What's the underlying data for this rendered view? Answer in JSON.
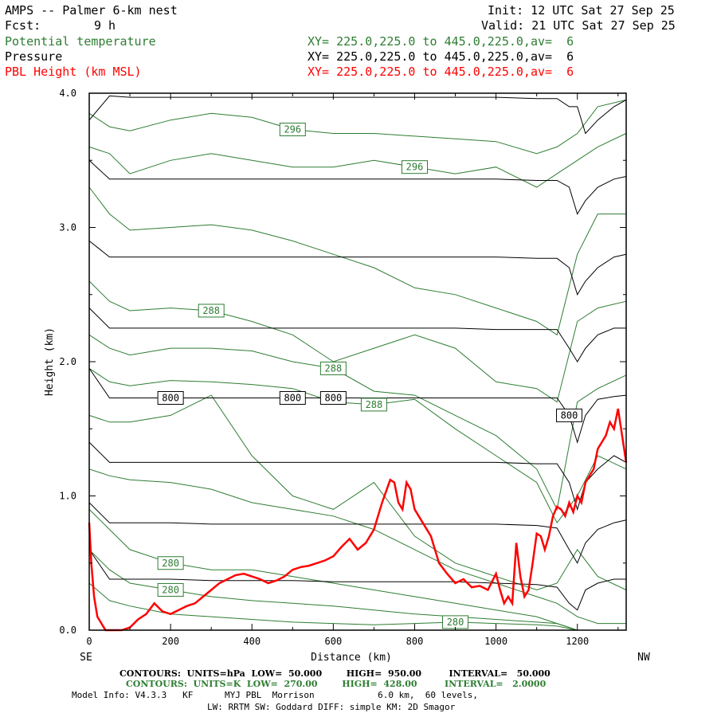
{
  "header": {
    "title": "AMPS -- Palmer 6-km nest",
    "fcst_label": "Fcst:",
    "fcst_value": "9 h",
    "init": "Init: 12 UTC Sat 27 Sep 25",
    "valid": "Valid: 21 UTC Sat 27 Sep 25"
  },
  "legend": [
    {
      "name": "Potential temperature",
      "xy": "XY= 225.0,225.0 to 445.0,225.0,av=  6",
      "color": "#2e7d32"
    },
    {
      "name": "Pressure",
      "xy": "XY= 225.0,225.0 to 445.0,225.0,av=  6",
      "color": "#000000"
    },
    {
      "name": "PBL Height (km MSL)",
      "xy": "XY= 225.0,225.0 to 445.0,225.0,av=  6",
      "color": "#ff0000"
    }
  ],
  "axes": {
    "ylabel": "Height (km)",
    "xlabel": "Distance (km)",
    "left_end": "SE",
    "right_end": "NW",
    "xlim": [
      0,
      1320
    ],
    "ylim": [
      0,
      4.0
    ],
    "xticks": [
      "0",
      "200",
      "400",
      "600",
      "800",
      "1000",
      "1200"
    ],
    "yticks": [
      "0.0",
      "1.0",
      "2.0",
      "3.0",
      "4.0"
    ]
  },
  "footer": {
    "contours_black": "CONTOURS:  UNITS=hPa  LOW=  50.000        HIGH=  950.00         INTERVAL=   50.000",
    "contours_green": "CONTOURS:  UNITS=K  LOW=  270.00        HIGH=  428.00         INTERVAL=   2.0000",
    "model_info": "Model Info: V4.3.3   KF      MYJ PBL  Morrison            6.0 km,  60 levels,",
    "physics": "LW: RRTM SW: Goddard DIFF: simple KM: 2D Smagor"
  },
  "chart_data": {
    "type": "line",
    "title": "AMPS -- Palmer 6-km nest",
    "xlabel": "Distance (km)",
    "ylabel": "Height (km)",
    "xlim": [
      0,
      1320
    ],
    "ylim": [
      0,
      4.0
    ],
    "series": [
      {
        "name": "PBL Height (km MSL)",
        "color": "#ff0000",
        "x": [
          0,
          5,
          12,
          20,
          40,
          60,
          80,
          100,
          120,
          140,
          160,
          180,
          200,
          220,
          240,
          260,
          280,
          300,
          320,
          340,
          360,
          380,
          400,
          420,
          440,
          460,
          480,
          500,
          520,
          540,
          560,
          580,
          600,
          620,
          640,
          660,
          680,
          700,
          720,
          740,
          750,
          760,
          770,
          780,
          790,
          800,
          820,
          840,
          860,
          880,
          900,
          920,
          940,
          960,
          980,
          1000,
          1010,
          1020,
          1030,
          1040,
          1050,
          1060,
          1070,
          1080,
          1090,
          1100,
          1110,
          1120,
          1130,
          1140,
          1150,
          1160,
          1170,
          1180,
          1190,
          1200,
          1210,
          1220,
          1230,
          1240,
          1250,
          1260,
          1270,
          1280,
          1290,
          1300,
          1310,
          1320
        ],
        "y": [
          0.8,
          0.5,
          0.25,
          0.1,
          0.0,
          0.0,
          0.0,
          0.02,
          0.08,
          0.12,
          0.2,
          0.14,
          0.12,
          0.15,
          0.18,
          0.2,
          0.25,
          0.3,
          0.35,
          0.38,
          0.41,
          0.42,
          0.4,
          0.38,
          0.35,
          0.37,
          0.4,
          0.45,
          0.47,
          0.48,
          0.5,
          0.52,
          0.55,
          0.62,
          0.68,
          0.6,
          0.65,
          0.75,
          0.95,
          1.12,
          1.1,
          0.95,
          0.9,
          1.1,
          1.05,
          0.9,
          0.8,
          0.7,
          0.5,
          0.42,
          0.35,
          0.38,
          0.32,
          0.33,
          0.3,
          0.42,
          0.3,
          0.2,
          0.25,
          0.2,
          0.65,
          0.4,
          0.25,
          0.3,
          0.5,
          0.72,
          0.7,
          0.6,
          0.7,
          0.85,
          0.92,
          0.9,
          0.85,
          0.95,
          0.88,
          1.0,
          0.95,
          1.1,
          1.15,
          1.2,
          1.35,
          1.4,
          1.45,
          1.55,
          1.5,
          1.65,
          1.45,
          1.25
        ]
      },
      {
        "name": "Pressure",
        "color": "#000000",
        "x": [
          0,
          50,
          100,
          200,
          300,
          400,
          500,
          600,
          700,
          800,
          900,
          1000,
          1100,
          1150,
          1180,
          1200,
          1220,
          1250,
          1290,
          1320
        ],
        "levels": [
          {
            "label": "",
            "y": [
              3.8,
              3.98,
              3.97,
              3.97,
              3.97,
              3.97,
              3.97,
              3.97,
              3.97,
              3.97,
              3.97,
              3.97,
              3.96,
              3.96,
              3.9,
              3.9,
              3.7,
              3.8,
              3.9,
              3.95
            ]
          },
          {
            "label": "",
            "y": [
              3.5,
              3.36,
              3.36,
              3.36,
              3.36,
              3.36,
              3.36,
              3.36,
              3.36,
              3.36,
              3.36,
              3.36,
              3.35,
              3.35,
              3.3,
              3.1,
              3.2,
              3.3,
              3.36,
              3.38
            ]
          },
          {
            "label": "",
            "y": [
              2.9,
              2.78,
              2.78,
              2.78,
              2.78,
              2.78,
              2.78,
              2.78,
              2.78,
              2.78,
              2.78,
              2.78,
              2.77,
              2.77,
              2.7,
              2.5,
              2.6,
              2.7,
              2.78,
              2.8
            ]
          },
          {
            "label": "",
            "y": [
              2.4,
              2.25,
              2.25,
              2.25,
              2.25,
              2.25,
              2.25,
              2.25,
              2.25,
              2.25,
              2.25,
              2.24,
              2.24,
              2.24,
              2.1,
              2.0,
              2.1,
              2.2,
              2.25,
              2.25
            ]
          },
          {
            "label": "800",
            "y": [
              1.95,
              1.73,
              1.73,
              1.73,
              1.73,
              1.73,
              1.73,
              1.73,
              1.73,
              1.73,
              1.73,
              1.73,
              1.73,
              1.73,
              1.6,
              1.4,
              1.6,
              1.72,
              1.74,
              1.75
            ]
          },
          {
            "label": "",
            "y": [
              1.4,
              1.25,
              1.25,
              1.25,
              1.25,
              1.25,
              1.25,
              1.25,
              1.25,
              1.25,
              1.25,
              1.25,
              1.24,
              1.24,
              1.1,
              0.9,
              1.1,
              1.2,
              1.3,
              1.25
            ]
          },
          {
            "label": "",
            "y": [
              0.95,
              0.8,
              0.8,
              0.8,
              0.79,
              0.79,
              0.79,
              0.79,
              0.79,
              0.79,
              0.79,
              0.79,
              0.78,
              0.76,
              0.6,
              0.5,
              0.65,
              0.75,
              0.8,
              0.82
            ]
          },
          {
            "label": "",
            "y": [
              0.6,
              0.38,
              0.38,
              0.38,
              0.37,
              0.37,
              0.37,
              0.36,
              0.36,
              0.36,
              0.36,
              0.35,
              0.34,
              0.32,
              0.2,
              0.15,
              0.3,
              0.35,
              0.38,
              0.38
            ]
          }
        ]
      },
      {
        "name": "Potential temperature",
        "color": "#2e7d32",
        "x": [
          0,
          50,
          100,
          200,
          300,
          400,
          500,
          600,
          700,
          800,
          900,
          1000,
          1100,
          1150,
          1200,
          1250,
          1320
        ],
        "levels": [
          {
            "label": "296",
            "y": [
              3.85,
              3.75,
              3.72,
              3.8,
              3.85,
              3.82,
              3.73,
              3.7,
              3.7,
              3.68,
              3.66,
              3.64,
              3.55,
              3.6,
              3.7,
              3.9,
              3.95
            ]
          },
          {
            "label": "296",
            "y": [
              3.6,
              3.55,
              3.4,
              3.5,
              3.55,
              3.5,
              3.45,
              3.45,
              3.5,
              3.45,
              3.4,
              3.45,
              3.3,
              3.4,
              3.5,
              3.6,
              3.7
            ]
          },
          {
            "label": "",
            "y": [
              3.3,
              3.1,
              2.98,
              3.0,
              3.02,
              2.98,
              2.9,
              2.8,
              2.7,
              2.55,
              2.5,
              2.4,
              2.3,
              2.2,
              2.8,
              3.1,
              3.1
            ]
          },
          {
            "label": "288",
            "y": [
              2.6,
              2.45,
              2.38,
              2.4,
              2.38,
              2.3,
              2.2,
              2.0,
              2.1,
              2.2,
              2.1,
              1.85,
              1.8,
              1.7,
              2.3,
              2.4,
              2.45
            ]
          },
          {
            "label": "288",
            "y": [
              2.2,
              2.1,
              2.05,
              2.1,
              2.1,
              2.08,
              2.0,
              1.95,
              1.78,
              1.75,
              1.6,
              1.45,
              1.2,
              0.9,
              1.7,
              1.8,
              1.9
            ]
          },
          {
            "label": "288",
            "y": [
              1.95,
              1.85,
              1.82,
              1.86,
              1.85,
              1.83,
              1.8,
              1.7,
              1.68,
              1.72,
              1.5,
              1.3,
              1.1,
              0.8,
              1.0,
              1.3,
              1.2
            ]
          },
          {
            "label": "",
            "y": [
              1.6,
              1.55,
              1.55,
              1.6,
              1.75,
              1.3,
              1.0,
              0.9,
              1.1,
              0.7,
              0.5,
              0.4,
              0.3,
              0.35,
              0.6,
              0.4,
              0.3
            ]
          },
          {
            "label": "",
            "y": [
              1.2,
              1.15,
              1.12,
              1.1,
              1.05,
              0.95,
              0.9,
              0.85,
              0.75,
              0.6,
              0.45,
              0.35,
              0.25,
              0.2,
              0.1,
              0.05,
              0.05
            ]
          },
          {
            "label": "280",
            "y": [
              0.9,
              0.75,
              0.6,
              0.5,
              0.45,
              0.45,
              0.4,
              0.35,
              0.3,
              0.25,
              0.2,
              0.15,
              0.1,
              0.05,
              0.0,
              0.0,
              0.0
            ]
          },
          {
            "label": "280",
            "y": [
              0.6,
              0.45,
              0.35,
              0.3,
              0.25,
              0.22,
              0.2,
              0.18,
              0.15,
              0.12,
              0.1,
              0.08,
              0.06,
              0.05,
              0.0,
              0.0,
              0.0
            ]
          },
          {
            "label": "280",
            "y": [
              0.35,
              0.22,
              0.18,
              0.12,
              0.1,
              0.08,
              0.06,
              0.05,
              0.04,
              0.05,
              0.06,
              0.05,
              0.04,
              0.03,
              0.0,
              0.0,
              0.0
            ]
          }
        ]
      }
    ]
  }
}
